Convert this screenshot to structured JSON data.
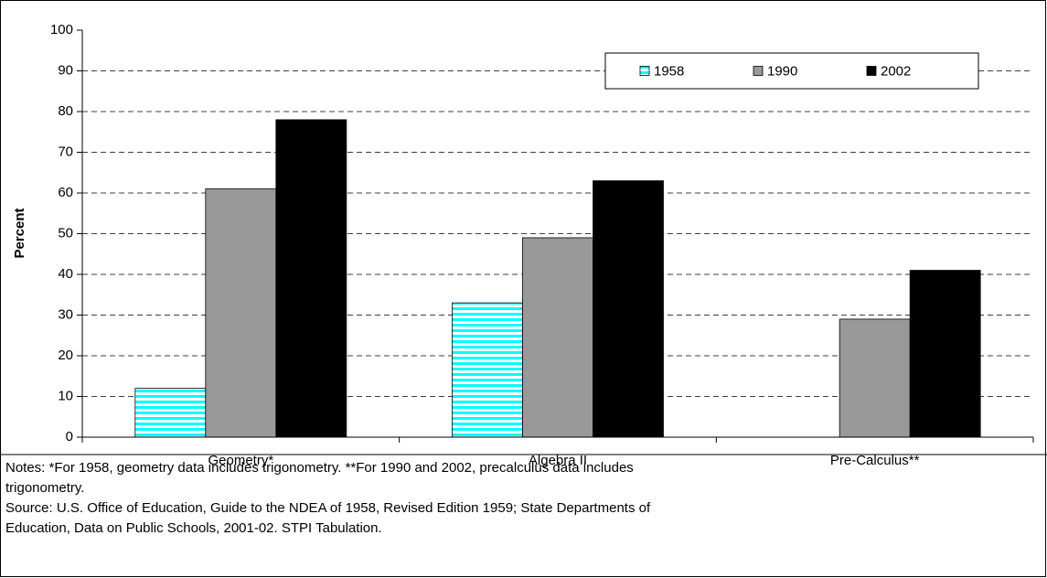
{
  "chart_data": {
    "type": "bar",
    "y_label": "Percent",
    "categories": [
      "Geometry*",
      "Algebra II",
      "Pre-Calculus**"
    ],
    "series": [
      {
        "name": "1958",
        "color": "#00ffff",
        "values": [
          12,
          33,
          null
        ]
      },
      {
        "name": "1990",
        "color": "#999999",
        "values": [
          61,
          49,
          29
        ]
      },
      {
        "name": "2002",
        "color": "#000000",
        "values": [
          78,
          63,
          41
        ]
      }
    ],
    "ylim": [
      0,
      100
    ],
    "yticks": [
      0,
      10,
      20,
      30,
      40,
      50,
      60,
      70,
      80,
      90,
      100
    ],
    "grid": true,
    "legend": "top-right",
    "notes": [
      "Notes: *For 1958, geometry data includes trigonometry. **For 1990 and 2002, precalculus data includes",
      "trigonometry.",
      "Source:  U.S. Office of Education, Guide to the NDEA of 1958, Revised Edition 1959; State Departments of",
      "Education, Data on Public Schools, 2001-02. STPI Tabulation."
    ]
  }
}
